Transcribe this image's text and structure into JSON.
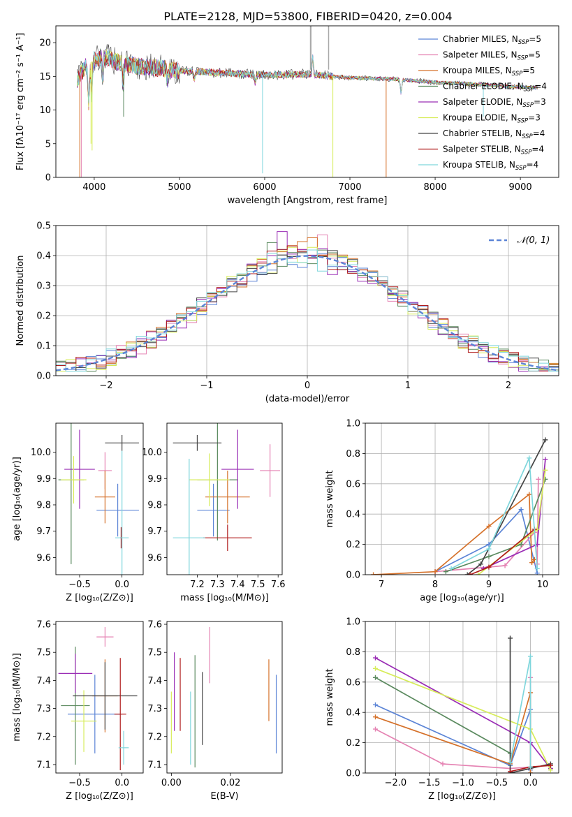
{
  "title": "PLATE=2128, MJD=53800, FIBERID=0420, z=0.004",
  "colors": [
    "#5b84d6",
    "#e583b3",
    "#d5712a",
    "#5b8a5f",
    "#9a2db5",
    "#d7ec5a",
    "#444444",
    "#b01c1c",
    "#7fd6dc"
  ],
  "chart_data": [
    {
      "id": "spectrum",
      "type": "line",
      "xlabel": "wavelength [Angstrom, rest frame]",
      "ylabel": "Flux [fλ10⁻¹⁷ erg cm⁻² s⁻¹ A⁻¹]",
      "xlim": [
        3550,
        9450
      ],
      "ylim": [
        0,
        22.5
      ],
      "xticks": [
        4000,
        5000,
        6000,
        7000,
        8000,
        9000
      ],
      "yticks": [
        0,
        5,
        10,
        15,
        20
      ],
      "legend_position": "top-right",
      "continuum": [
        [
          3800,
          14.5
        ],
        [
          3900,
          16.5
        ],
        [
          4000,
          17.5
        ],
        [
          4100,
          18
        ],
        [
          4300,
          17
        ],
        [
          4500,
          16.5
        ],
        [
          4800,
          16.2
        ],
        [
          5000,
          15.8
        ],
        [
          5500,
          15.5
        ],
        [
          6000,
          15.2
        ],
        [
          6500,
          15.3
        ],
        [
          7000,
          14.8
        ],
        [
          7500,
          14.6
        ],
        [
          8000,
          14.1
        ],
        [
          8500,
          13.8
        ],
        [
          9000,
          13.4
        ],
        [
          9200,
          13.3
        ]
      ],
      "series": [
        {
          "name": "Chabrier MILES, N_SSP=5",
          "legend": [
            "Chabrier MILES, N",
            "SSP",
            "=5"
          ]
        },
        {
          "name": "Salpeter MILES, N_SSP=5",
          "legend": [
            "Salpeter MILES, N",
            "SSP",
            "=5"
          ]
        },
        {
          "name": "Kroupa MILES, N_SSP=5",
          "legend": [
            "Kroupa MILES, N",
            "SSP",
            "=5"
          ]
        },
        {
          "name": "Chabrier ELODIE, N_SSP=4",
          "legend": [
            "Chabrier ELODIE, N",
            "SSP",
            "=4"
          ]
        },
        {
          "name": "Salpeter ELODIE, N_SSP=3",
          "legend": [
            "Salpeter ELODIE, N",
            "SSP",
            "=3"
          ]
        },
        {
          "name": "Kroupa ELODIE, N_SSP=3",
          "legend": [
            "Kroupa ELODIE, N",
            "SSP",
            "=3"
          ]
        },
        {
          "name": "Chabrier STELIB, N_SSP=4",
          "legend": [
            "Chabrier STELIB, N",
            "SSP",
            "=4"
          ]
        },
        {
          "name": "Salpeter STELIB, N_SSP=4",
          "legend": [
            "Salpeter STELIB, N",
            "SSP",
            "=4"
          ]
        },
        {
          "name": "Kroupa STELIB, N_SSP=4",
          "legend": [
            "Kroupa STELIB, N",
            "SSP",
            "=4"
          ]
        }
      ]
    },
    {
      "id": "residuals",
      "type": "line",
      "xlabel": "(data-model)/error",
      "ylabel": "Normed distribution",
      "xlim": [
        -2.5,
        2.5
      ],
      "ylim": [
        0,
        0.5
      ],
      "xticks": [
        -2,
        -1,
        0,
        1,
        2
      ],
      "xticklabels": [
        "−2",
        "−1",
        "0",
        "1",
        "2"
      ],
      "yticks": [
        0,
        0.1,
        0.2,
        0.3,
        0.4,
        0.5
      ],
      "yticklabels": [
        "0.0",
        "0.1",
        "0.2",
        "0.3",
        "0.4",
        "0.5"
      ],
      "grid": true,
      "legend": "𝒩(0, 1)",
      "bins": {
        "start": -2.5,
        "width": 0.1,
        "count": 50
      },
      "gaussian": {
        "mean": 0,
        "sigma": 1
      }
    },
    {
      "id": "age_vs_Z",
      "type": "scatter",
      "xlabel": "Z [log₁₀(Z/Z⊙)]",
      "ylabel": "age  [log₁₀(age/yr)]",
      "xlim": [
        -0.78,
        0.25
      ],
      "ylim": [
        9.535,
        10.11
      ],
      "xticks": [
        -0.5,
        0.0
      ],
      "xticklabels": [
        "−0.5",
        "0.0"
      ],
      "yticks": [
        9.6,
        9.7,
        9.8,
        9.9,
        10.0
      ],
      "yticklabels": [
        "9.6",
        "9.7",
        "9.8",
        "9.9",
        "10.0"
      ],
      "points": [
        {
          "x": -0.05,
          "y": 9.78,
          "xerr": 0.25,
          "yerr": 0.1,
          "series": 0
        },
        {
          "x": -0.2,
          "y": 9.93,
          "xerr": 0.08,
          "yerr": 0.07,
          "series": 1
        },
        {
          "x": -0.2,
          "y": 9.83,
          "xerr": 0.12,
          "yerr": 0.1,
          "series": 2
        },
        {
          "x": -0.6,
          "y": 9.895,
          "xerr": 0.15,
          "yerr": 0.32,
          "series": 3
        },
        {
          "x": -0.5,
          "y": 9.935,
          "xerr": 0.18,
          "yerr": 0.15,
          "series": 4
        },
        {
          "x": -0.57,
          "y": 9.895,
          "xerr": 0.15,
          "yerr": 0.09,
          "series": 5
        },
        {
          "x": 0.0,
          "y": 10.035,
          "xerr": 0.2,
          "yerr": 0.03,
          "series": 6
        },
        {
          "x": -0.01,
          "y": 9.675,
          "xerr": 0.01,
          "yerr": 0.04,
          "series": 7
        },
        {
          "x": 0.0,
          "y": 9.675,
          "xerr": 0.08,
          "yerr": 0.33,
          "series": 8
        }
      ]
    },
    {
      "id": "age_vs_mass",
      "type": "scatter",
      "xlabel": "mass [log₁₀(M/M⊙)]",
      "ylabel": "",
      "xlim": [
        7.05,
        7.62
      ],
      "ylim": [
        9.535,
        10.11
      ],
      "xticks": [
        7.2,
        7.3,
        7.4,
        7.5,
        7.6
      ],
      "xticklabels": [
        "7.2",
        "7.3",
        "7.4",
        "7.5",
        "7.6"
      ],
      "yticks": [
        9.6,
        9.7,
        9.8,
        9.9,
        10.0
      ],
      "yticklabels": [
        "9.6",
        "9.7",
        "9.8",
        "9.9",
        "10.0"
      ],
      "points": [
        {
          "x": 7.28,
          "y": 9.78,
          "xerr": 0.08,
          "yerr": 0.1,
          "series": 0
        },
        {
          "x": 7.56,
          "y": 9.93,
          "xerr": 0.05,
          "yerr": 0.1,
          "series": 1
        },
        {
          "x": 7.35,
          "y": 9.83,
          "xerr": 0.11,
          "yerr": 0.1,
          "series": 2
        },
        {
          "x": 7.3,
          "y": 9.895,
          "xerr": 0.1,
          "yerr": 0.23,
          "series": 3
        },
        {
          "x": 7.4,
          "y": 9.935,
          "xerr": 0.08,
          "yerr": 0.15,
          "series": 4
        },
        {
          "x": 7.26,
          "y": 9.895,
          "xerr": 0.1,
          "yerr": 0.1,
          "series": 5
        },
        {
          "x": 7.2,
          "y": 10.035,
          "xerr": 0.12,
          "yerr": 0.03,
          "series": 6
        },
        {
          "x": 7.35,
          "y": 9.675,
          "xerr": 0.12,
          "yerr": 0.05,
          "series": 7
        },
        {
          "x": 7.16,
          "y": 9.675,
          "xerr": 0.08,
          "yerr": 0.3,
          "series": 8
        }
      ]
    },
    {
      "id": "massweight_vs_age",
      "type": "line",
      "xlabel": "age  [log₁₀(age/yr)]",
      "ylabel": "mass weight",
      "xlim": [
        6.7,
        10.3
      ],
      "ylim": [
        0,
        1
      ],
      "xticks": [
        7,
        8,
        9,
        10
      ],
      "xticklabels": [
        "7",
        "8",
        "9",
        "10"
      ],
      "yticks": [
        0,
        0.2,
        0.4,
        0.6,
        0.8,
        1.0
      ],
      "yticklabels": [
        "0.0",
        "0.2",
        "0.4",
        "0.6",
        "0.8",
        "1.0"
      ],
      "grid": true,
      "series": [
        {
          "x": [
            8.0,
            9.0,
            9.6,
            9.9
          ],
          "y": [
            0.02,
            0.2,
            0.43,
            0.01
          ]
        },
        {
          "x": [
            8.0,
            9.3,
            9.85,
            9.9,
            9.92
          ],
          "y": [
            0.02,
            0.06,
            0.28,
            0.07,
            0.63
          ]
        },
        {
          "x": [
            6.85,
            8.0,
            9.0,
            9.75,
            9.8,
            9.85
          ],
          "y": [
            0.0,
            0.02,
            0.32,
            0.53,
            0.08,
            0.1
          ]
        },
        {
          "x": [
            8.2,
            9.0,
            9.6,
            10.05
          ],
          "y": [
            0.02,
            0.12,
            0.2,
            0.63
          ]
        },
        {
          "x": [
            8.9,
            9.9,
            10.05
          ],
          "y": [
            0.04,
            0.2,
            0.76
          ]
        },
        {
          "x": [
            8.8,
            9.9,
            10.05
          ],
          "y": [
            0.0,
            0.3,
            0.69
          ]
        },
        {
          "x": [
            8.6,
            8.85,
            10.05
          ],
          "y": [
            0.0,
            0.07,
            0.89
          ]
        },
        {
          "x": [
            8.65,
            9.0,
            9.85
          ],
          "y": [
            0.0,
            0.05,
            0.3
          ]
        },
        {
          "x": [
            8.3,
            9.0,
            9.75,
            9.9
          ],
          "y": [
            0.04,
            0.17,
            0.77,
            0.04
          ]
        }
      ]
    },
    {
      "id": "mass_vs_Z",
      "type": "scatter",
      "xlabel": "Z [log₁₀(Z/Z⊙)]",
      "ylabel": "mass [log₁₀(M/M⊙)]",
      "xlim": [
        -0.78,
        0.25
      ],
      "ylim": [
        7.07,
        7.61
      ],
      "xticks": [
        -0.5,
        0.0
      ],
      "xticklabels": [
        "−0.5",
        "0.0"
      ],
      "yticks": [
        7.1,
        7.2,
        7.3,
        7.4,
        7.5,
        7.6
      ],
      "yticklabels": [
        "7.1",
        "7.2",
        "7.3",
        "7.4",
        "7.5",
        "7.6"
      ],
      "points": [
        {
          "x": -0.32,
          "y": 7.28,
          "xerr": 0.32,
          "yerr": 0.14,
          "series": 0
        },
        {
          "x": -0.2,
          "y": 7.555,
          "xerr": 0.1,
          "yerr": 0.035,
          "series": 1
        },
        {
          "x": -0.2,
          "y": 7.345,
          "xerr": 0.15,
          "yerr": 0.13,
          "series": 2
        },
        {
          "x": -0.55,
          "y": 7.31,
          "xerr": 0.17,
          "yerr": 0.21,
          "series": 3
        },
        {
          "x": -0.55,
          "y": 7.425,
          "xerr": 0.2,
          "yerr": 0.07,
          "series": 4
        },
        {
          "x": -0.45,
          "y": 7.255,
          "xerr": 0.15,
          "yerr": 0.11,
          "series": 5
        },
        {
          "x": -0.2,
          "y": 7.345,
          "xerr": 0.38,
          "yerr": 0.12,
          "series": 6
        },
        {
          "x": -0.02,
          "y": 7.28,
          "xerr": 0.07,
          "yerr": 0.2,
          "series": 7
        },
        {
          "x": 0.02,
          "y": 7.16,
          "xerr": 0.06,
          "yerr": 0.06,
          "series": 8
        }
      ]
    },
    {
      "id": "mass_vs_ebv",
      "type": "scatter",
      "xlabel": "E(B-V)",
      "ylabel": "",
      "xlim": [
        -0.0015,
        0.0375
      ],
      "ylim": [
        7.07,
        7.61
      ],
      "xticks": [
        0.0,
        0.02
      ],
      "xticklabels": [
        "0.00",
        "0.02"
      ],
      "yticks": [
        7.1,
        7.2,
        7.3,
        7.4,
        7.5,
        7.6
      ],
      "yticklabels": [
        "7.1",
        "7.2",
        "7.3",
        "7.4",
        "7.5",
        "7.6"
      ],
      "points": [
        {
          "x": 0.0355,
          "y": 7.28,
          "yerr": 0.14,
          "series": 0
        },
        {
          "x": 0.013,
          "y": 7.49,
          "yerr": 0.1,
          "series": 1
        },
        {
          "x": 0.033,
          "y": 7.365,
          "yerr": 0.11,
          "series": 2
        },
        {
          "x": 0.008,
          "y": 7.29,
          "yerr": 0.2,
          "series": 3
        },
        {
          "x": 0.001,
          "y": 7.36,
          "yerr": 0.14,
          "series": 4
        },
        {
          "x": 0.0,
          "y": 7.25,
          "yerr": 0.11,
          "series": 5
        },
        {
          "x": 0.0105,
          "y": 7.3,
          "yerr": 0.13,
          "series": 6
        },
        {
          "x": 0.003,
          "y": 7.35,
          "yerr": 0.13,
          "series": 7
        },
        {
          "x": 0.0065,
          "y": 7.23,
          "yerr": 0.13,
          "series": 8
        }
      ]
    },
    {
      "id": "massweight_vs_Z",
      "type": "line",
      "xlabel": "Z [log₁₀(Z/Z⊙)]",
      "ylabel": "mass weight",
      "xlim": [
        -2.45,
        0.42
      ],
      "ylim": [
        0,
        1
      ],
      "xticks": [
        -2.0,
        -1.5,
        -1.0,
        -0.5,
        0.0
      ],
      "xticklabels": [
        "−2.0",
        "−1.5",
        "−1.0",
        "−0.5",
        "0.0"
      ],
      "yticks": [
        0,
        0.2,
        0.4,
        0.6,
        0.8,
        1.0
      ],
      "yticklabels": [
        "0.0",
        "0.2",
        "0.4",
        "0.6",
        "0.8",
        "1.0"
      ],
      "grid": true,
      "series": [
        {
          "x": [
            -2.3,
            -0.3,
            0.0,
            0.0
          ],
          "y": [
            0.45,
            0.05,
            0.42,
            0.02
          ]
        },
        {
          "x": [
            -2.3,
            -1.3,
            -0.3,
            0.0,
            0.0
          ],
          "y": [
            0.29,
            0.06,
            0.03,
            0.04,
            0.63
          ]
        },
        {
          "x": [
            -2.3,
            -0.3,
            0.0,
            0.0
          ],
          "y": [
            0.37,
            0.06,
            0.53,
            0.0
          ]
        },
        {
          "x": [
            -2.3,
            -0.3
          ],
          "y": [
            0.63,
            0.13
          ]
        },
        {
          "x": [
            -2.3,
            0.0,
            0.3
          ],
          "y": [
            0.76,
            0.2,
            0.03
          ]
        },
        {
          "x": [
            -2.3,
            0.0,
            0.3
          ],
          "y": [
            0.69,
            0.29,
            0.02
          ]
        },
        {
          "x": [
            -0.3,
            -0.3,
            0.3
          ],
          "y": [
            0.89,
            0.0,
            0.06
          ]
        },
        {
          "x": [
            -0.3,
            0.0,
            0.3
          ],
          "y": [
            0.01,
            0.04,
            0.05
          ]
        },
        {
          "x": [
            -0.3,
            0.0,
            0.0
          ],
          "y": [
            0.07,
            0.77,
            0.04
          ]
        }
      ]
    }
  ]
}
